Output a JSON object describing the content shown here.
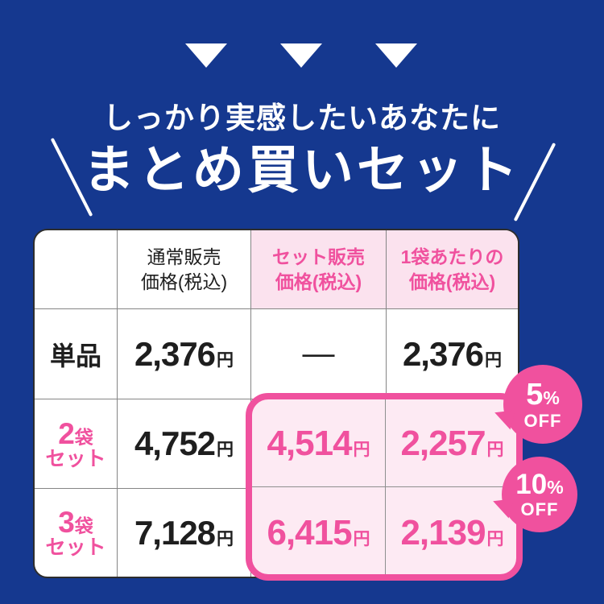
{
  "colors": {
    "background_navy": "#15388f",
    "accent_pink": "#f0519e",
    "header_pink_bg": "#fbe2ee",
    "highlight_fill_pink": "#fdeaf3",
    "text_black": "#1e1e1e",
    "grid_line_gray": "#858585",
    "white": "#ffffff"
  },
  "hero": {
    "subtitle": "しっかり実感したいあなたに",
    "title": "まとめ買いセット"
  },
  "table": {
    "currency": "円",
    "headers": {
      "regular": "通常販売\n価格(税込)",
      "set": "セット販売\n価格(税込)",
      "per_bag": "1袋あたりの\n価格(税込)"
    },
    "rows": [
      {
        "label": "単品",
        "regular": "2,376",
        "set_dash": "—",
        "per_bag": "2,376"
      },
      {
        "label_num": "2",
        "label_bag": "袋",
        "label_set": "セット",
        "regular": "4,752",
        "set": "4,514",
        "per_bag": "2,257"
      },
      {
        "label_num": "3",
        "label_bag": "袋",
        "label_set": "セット",
        "regular": "7,128",
        "set": "6,415",
        "per_bag": "2,139"
      }
    ]
  },
  "badges": [
    {
      "number": "5",
      "percent": "%",
      "label": "OFF"
    },
    {
      "number": "10",
      "percent": "%",
      "label": "OFF"
    }
  ]
}
